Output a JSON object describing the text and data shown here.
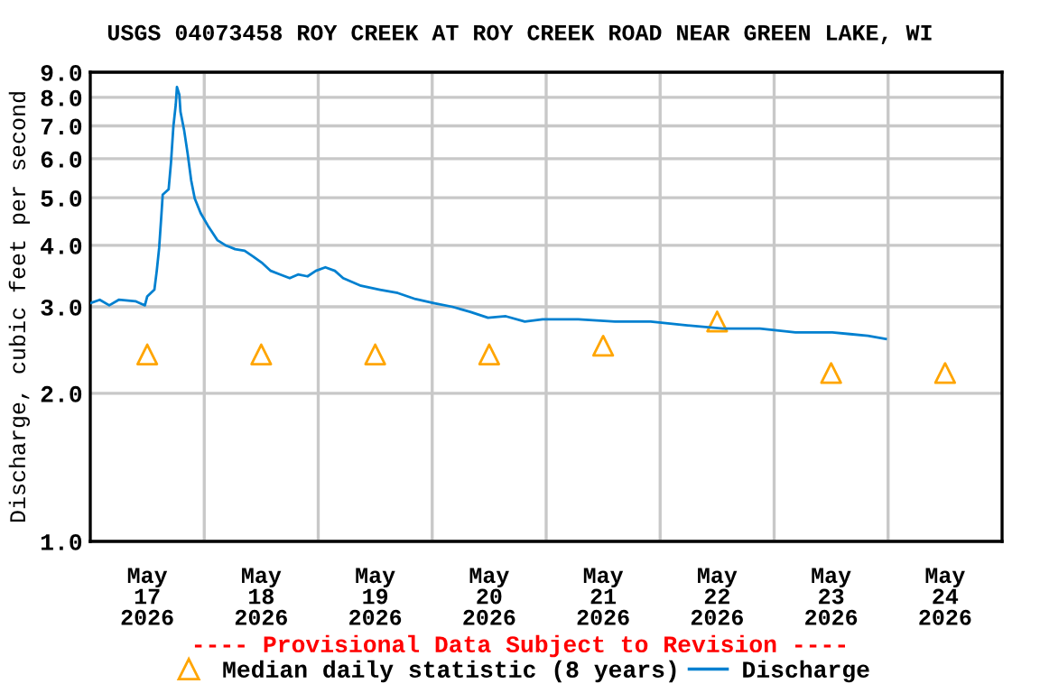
{
  "chart_data": {
    "type": "line",
    "title": "USGS 04073458 ROY CREEK AT ROY CREEK ROAD NEAR GREEN LAKE, WI",
    "ylabel": "Discharge, cubic feet per second",
    "annotations": [
      "---- Provisional Data Subject to Revision ----"
    ],
    "log": "y",
    "grid": true,
    "legend": "bottom",
    "xlim": [
      "2026-05-17T00:00",
      "2026-05-25T00:00"
    ],
    "xticks": [
      {
        "value": "2026-05-17T12:00",
        "label": "May\n17\n2026"
      },
      {
        "value": "2026-05-18T12:00",
        "label": "May\n18\n2026"
      },
      {
        "value": "2026-05-19T12:00",
        "label": "May\n19\n2026"
      },
      {
        "value": "2026-05-20T12:00",
        "label": "May\n20\n2026"
      },
      {
        "value": "2026-05-21T12:00",
        "label": "May\n21\n2026"
      },
      {
        "value": "2026-05-22T12:00",
        "label": "May\n22\n2026"
      },
      {
        "value": "2026-05-23T12:00",
        "label": "May\n23\n2026"
      },
      {
        "value": "2026-05-24T12:00",
        "label": "May\n24\n2026"
      },
      {
        "value": "2026-05-18T00:00",
        "label": null
      },
      {
        "value": "2026-05-19T00:00",
        "label": null
      },
      {
        "value": "2026-05-20T00:00",
        "label": null
      },
      {
        "value": "2026-05-21T00:00",
        "label": null
      },
      {
        "value": "2026-05-22T00:00",
        "label": null
      },
      {
        "value": "2026-05-23T00:00",
        "label": null
      },
      {
        "value": "2026-05-24T00:00",
        "label": null
      }
    ],
    "ylim": [
      1.0,
      9.0
    ],
    "yticks": [
      {
        "value": 1,
        "label": "1.0"
      },
      {
        "value": 2,
        "label": "2.0"
      },
      {
        "value": 3,
        "label": "3.0"
      },
      {
        "value": 4,
        "label": "4.0"
      },
      {
        "value": 5,
        "label": "5.0"
      },
      {
        "value": 6,
        "label": "6.0"
      },
      {
        "value": 7,
        "label": "7.0"
      },
      {
        "value": 8,
        "label": "8.0"
      },
      {
        "value": 9,
        "label": "9.0"
      }
    ],
    "series": [
      {
        "name": "Median daily statistic (8 years)",
        "type": "scatter",
        "marker": "triangle",
        "color": "#ffa500",
        "x": [
          "2026-05-17T12:00",
          "2026-05-18T12:00",
          "2026-05-19T12:00",
          "2026-05-20T12:00",
          "2026-05-21T12:00",
          "2026-05-22T12:00",
          "2026-05-23T12:00",
          "2026-05-24T12:00"
        ],
        "values": [
          2.4,
          2.4,
          2.4,
          2.4,
          2.5,
          2.8,
          2.2,
          2.2
        ]
      },
      {
        "name": "Discharge",
        "marker": "none",
        "color": "#0080d0",
        "x": [
          "2026-05-17T00:00",
          "2026-05-17T02:00",
          "2026-05-17T04:00",
          "2026-05-17T06:00",
          "2026-05-17T09:30",
          "2026-05-17T11:30",
          "2026-05-17T12:00",
          "2026-05-17T13:30",
          "2026-05-17T14:00",
          "2026-05-17T14:30",
          "2026-05-17T15:00",
          "2026-05-17T15:15",
          "2026-05-17T16:30",
          "2026-05-17T17:00",
          "2026-05-17T17:30",
          "2026-05-17T18:00",
          "2026-05-17T18:15",
          "2026-05-17T18:45",
          "2026-05-17T19:00",
          "2026-05-17T19:45",
          "2026-05-17T20:30",
          "2026-05-17T21:15",
          "2026-05-17T22:00",
          "2026-05-17T23:15",
          "2026-05-18T00:45",
          "2026-05-18T02:45",
          "2026-05-18T04:30",
          "2026-05-18T06:30",
          "2026-05-18T08:30",
          "2026-05-18T10:15",
          "2026-05-18T12:15",
          "2026-05-18T14:00",
          "2026-05-18T16:00",
          "2026-05-18T18:00",
          "2026-05-18T19:45",
          "2026-05-18T21:45",
          "2026-05-18T23:30",
          "2026-05-19T01:30",
          "2026-05-19T03:30",
          "2026-05-19T05:15",
          "2026-05-19T09:00",
          "2026-05-19T13:00",
          "2026-05-19T16:45",
          "2026-05-19T20:30",
          "2026-05-20T00:30",
          "2026-05-20T04:15",
          "2026-05-20T08:00",
          "2026-05-20T11:45",
          "2026-05-20T15:30",
          "2026-05-20T19:30",
          "2026-05-20T23:15",
          "2026-05-21T03:00",
          "2026-05-21T06:45",
          "2026-05-21T14:30",
          "2026-05-21T22:00",
          "2026-05-22T05:45",
          "2026-05-22T13:15",
          "2026-05-22T21:00",
          "2026-05-23T04:30",
          "2026-05-23T12:15",
          "2026-05-23T16:00",
          "2026-05-23T19:45",
          "2026-05-23T23:30"
        ],
        "values": [
          3.05,
          3.1,
          3.02,
          3.1,
          3.08,
          3.02,
          3.15,
          3.25,
          3.55,
          3.95,
          4.65,
          5.07,
          5.2,
          5.9,
          6.98,
          7.73,
          8.4,
          8.1,
          7.47,
          6.87,
          6.15,
          5.42,
          4.98,
          4.65,
          4.39,
          4.1,
          4.0,
          3.93,
          3.9,
          3.8,
          3.68,
          3.55,
          3.49,
          3.43,
          3.49,
          3.46,
          3.55,
          3.61,
          3.55,
          3.43,
          3.31,
          3.25,
          3.2,
          3.11,
          3.05,
          3.0,
          2.93,
          2.85,
          2.87,
          2.8,
          2.83,
          2.83,
          2.83,
          2.8,
          2.8,
          2.75,
          2.71,
          2.71,
          2.66,
          2.66,
          2.64,
          2.62,
          2.58
        ]
      }
    ]
  }
}
